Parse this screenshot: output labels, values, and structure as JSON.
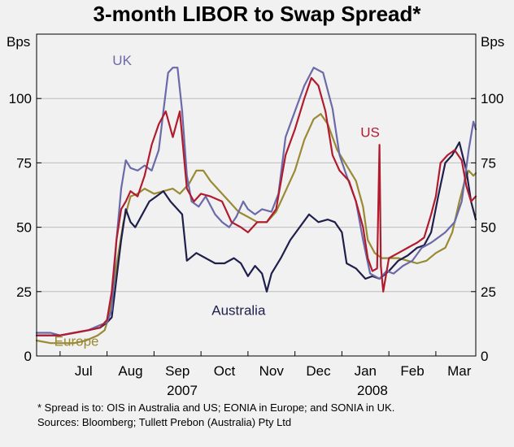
{
  "chart_data": {
    "type": "line",
    "title": "3-month LIBOR to Swap Spread*",
    "ylabel_left": "Bps",
    "ylabel_right": "Bps",
    "ylim": [
      0,
      125
    ],
    "yticks": [
      0,
      25,
      50,
      75,
      100
    ],
    "months": [
      "Jul",
      "Aug",
      "Sep",
      "Oct",
      "Nov",
      "Dec",
      "Jan",
      "Feb",
      "Mar"
    ],
    "years": [
      {
        "label": "2007",
        "at": 3.6
      },
      {
        "label": "2008",
        "at": 7.65
      }
    ],
    "x_unit": "months since 1 Jun 2007",
    "xlim": [
      0.5,
      9.85
    ],
    "series": [
      {
        "name": "UK",
        "color": "#6b6aa8",
        "points": [
          [
            0.5,
            9
          ],
          [
            0.8,
            9
          ],
          [
            1.0,
            8
          ],
          [
            1.3,
            9
          ],
          [
            1.6,
            10
          ],
          [
            1.85,
            12
          ],
          [
            2.0,
            13
          ],
          [
            2.1,
            18
          ],
          [
            2.2,
            45
          ],
          [
            2.3,
            65
          ],
          [
            2.4,
            76
          ],
          [
            2.5,
            73
          ],
          [
            2.65,
            72
          ],
          [
            2.8,
            74
          ],
          [
            2.95,
            72
          ],
          [
            3.1,
            80
          ],
          [
            3.2,
            95
          ],
          [
            3.3,
            110
          ],
          [
            3.4,
            112
          ],
          [
            3.5,
            112
          ],
          [
            3.6,
            95
          ],
          [
            3.7,
            70
          ],
          [
            3.8,
            60
          ],
          [
            3.95,
            58
          ],
          [
            4.1,
            62
          ],
          [
            4.3,
            55
          ],
          [
            4.45,
            52
          ],
          [
            4.6,
            50
          ],
          [
            4.75,
            54
          ],
          [
            4.9,
            60
          ],
          [
            5.0,
            57
          ],
          [
            5.15,
            55
          ],
          [
            5.3,
            57
          ],
          [
            5.5,
            56
          ],
          [
            5.65,
            63
          ],
          [
            5.8,
            85
          ],
          [
            6.0,
            95
          ],
          [
            6.2,
            105
          ],
          [
            6.4,
            112
          ],
          [
            6.6,
            110
          ],
          [
            6.8,
            96
          ],
          [
            6.95,
            78
          ],
          [
            7.1,
            70
          ],
          [
            7.3,
            60
          ],
          [
            7.45,
            45
          ],
          [
            7.6,
            32
          ],
          [
            7.8,
            30
          ],
          [
            7.95,
            33
          ],
          [
            8.1,
            32
          ],
          [
            8.3,
            35
          ],
          [
            8.5,
            37
          ],
          [
            8.7,
            42
          ],
          [
            8.9,
            44
          ],
          [
            9.05,
            46
          ],
          [
            9.2,
            48
          ],
          [
            9.4,
            52
          ],
          [
            9.55,
            60
          ],
          [
            9.7,
            80
          ],
          [
            9.8,
            91
          ],
          [
            9.85,
            88
          ]
        ]
      },
      {
        "name": "US",
        "color": "#b01c2e",
        "points": [
          [
            0.5,
            8
          ],
          [
            0.8,
            8
          ],
          [
            1.0,
            8
          ],
          [
            1.3,
            9
          ],
          [
            1.6,
            10
          ],
          [
            1.85,
            11
          ],
          [
            2.0,
            14
          ],
          [
            2.1,
            25
          ],
          [
            2.2,
            45
          ],
          [
            2.3,
            57
          ],
          [
            2.4,
            60
          ],
          [
            2.5,
            64
          ],
          [
            2.65,
            62
          ],
          [
            2.8,
            70
          ],
          [
            2.95,
            82
          ],
          [
            3.1,
            90
          ],
          [
            3.25,
            95
          ],
          [
            3.4,
            85
          ],
          [
            3.55,
            95
          ],
          [
            3.7,
            65
          ],
          [
            3.85,
            60
          ],
          [
            4.0,
            63
          ],
          [
            4.2,
            62
          ],
          [
            4.45,
            60
          ],
          [
            4.65,
            52
          ],
          [
            4.85,
            50
          ],
          [
            5.0,
            48
          ],
          [
            5.2,
            52
          ],
          [
            5.4,
            52
          ],
          [
            5.6,
            57
          ],
          [
            5.8,
            78
          ],
          [
            6.0,
            88
          ],
          [
            6.2,
            100
          ],
          [
            6.35,
            108
          ],
          [
            6.5,
            105
          ],
          [
            6.65,
            95
          ],
          [
            6.8,
            78
          ],
          [
            6.95,
            72
          ],
          [
            7.15,
            68
          ],
          [
            7.3,
            60
          ],
          [
            7.45,
            50
          ],
          [
            7.55,
            38
          ],
          [
            7.65,
            33
          ],
          [
            7.75,
            34
          ],
          [
            7.8,
            82
          ],
          [
            7.83,
            35
          ],
          [
            7.88,
            25
          ],
          [
            8.0,
            38
          ],
          [
            8.2,
            40
          ],
          [
            8.4,
            42
          ],
          [
            8.6,
            44
          ],
          [
            8.75,
            46
          ],
          [
            8.9,
            55
          ],
          [
            9.0,
            62
          ],
          [
            9.1,
            75
          ],
          [
            9.25,
            78
          ],
          [
            9.4,
            80
          ],
          [
            9.55,
            76
          ],
          [
            9.65,
            66
          ],
          [
            9.75,
            60
          ],
          [
            9.85,
            62
          ]
        ]
      },
      {
        "name": "Europe",
        "color": "#9a8a34",
        "points": [
          [
            0.5,
            6
          ],
          [
            0.8,
            5
          ],
          [
            1.0,
            5
          ],
          [
            1.3,
            5
          ],
          [
            1.55,
            6
          ],
          [
            1.8,
            8
          ],
          [
            1.95,
            10
          ],
          [
            2.05,
            16
          ],
          [
            2.2,
            35
          ],
          [
            2.35,
            52
          ],
          [
            2.5,
            62
          ],
          [
            2.65,
            63
          ],
          [
            2.8,
            65
          ],
          [
            3.0,
            63
          ],
          [
            3.2,
            64
          ],
          [
            3.4,
            65
          ],
          [
            3.55,
            63
          ],
          [
            3.75,
            67
          ],
          [
            3.9,
            72
          ],
          [
            4.05,
            72
          ],
          [
            4.2,
            68
          ],
          [
            4.4,
            64
          ],
          [
            4.6,
            60
          ],
          [
            4.8,
            56
          ],
          [
            5.0,
            54
          ],
          [
            5.2,
            52
          ],
          [
            5.4,
            52
          ],
          [
            5.6,
            56
          ],
          [
            5.8,
            64
          ],
          [
            6.0,
            72
          ],
          [
            6.2,
            84
          ],
          [
            6.4,
            92
          ],
          [
            6.55,
            94
          ],
          [
            6.7,
            90
          ],
          [
            6.9,
            80
          ],
          [
            7.1,
            74
          ],
          [
            7.3,
            68
          ],
          [
            7.45,
            58
          ],
          [
            7.55,
            45
          ],
          [
            7.7,
            40
          ],
          [
            7.85,
            38
          ],
          [
            8.0,
            38
          ],
          [
            8.2,
            38
          ],
          [
            8.4,
            37
          ],
          [
            8.6,
            36
          ],
          [
            8.8,
            37
          ],
          [
            9.0,
            40
          ],
          [
            9.2,
            42
          ],
          [
            9.35,
            48
          ],
          [
            9.5,
            60
          ],
          [
            9.6,
            67
          ],
          [
            9.7,
            72
          ],
          [
            9.8,
            70
          ],
          [
            9.85,
            71
          ]
        ]
      },
      {
        "name": "Australia",
        "color": "#1e1f4a",
        "points": [
          [
            0.5,
            8
          ],
          [
            0.8,
            8
          ],
          [
            1.0,
            8
          ],
          [
            1.3,
            9
          ],
          [
            1.6,
            10
          ],
          [
            1.85,
            11
          ],
          [
            2.0,
            13
          ],
          [
            2.1,
            15
          ],
          [
            2.2,
            30
          ],
          [
            2.3,
            45
          ],
          [
            2.4,
            57
          ],
          [
            2.5,
            52
          ],
          [
            2.6,
            50
          ],
          [
            2.75,
            55
          ],
          [
            2.9,
            60
          ],
          [
            3.05,
            62
          ],
          [
            3.2,
            64
          ],
          [
            3.35,
            60
          ],
          [
            3.45,
            58
          ],
          [
            3.6,
            55
          ],
          [
            3.7,
            37
          ],
          [
            3.9,
            40
          ],
          [
            4.1,
            38
          ],
          [
            4.3,
            36
          ],
          [
            4.5,
            36
          ],
          [
            4.7,
            38
          ],
          [
            4.85,
            36
          ],
          [
            5.0,
            31
          ],
          [
            5.15,
            35
          ],
          [
            5.3,
            32
          ],
          [
            5.4,
            25
          ],
          [
            5.5,
            32
          ],
          [
            5.7,
            38
          ],
          [
            5.9,
            45
          ],
          [
            6.1,
            50
          ],
          [
            6.3,
            55
          ],
          [
            6.5,
            52
          ],
          [
            6.7,
            53
          ],
          [
            6.85,
            52
          ],
          [
            7.0,
            48
          ],
          [
            7.1,
            36
          ],
          [
            7.3,
            34
          ],
          [
            7.5,
            30
          ],
          [
            7.65,
            31
          ],
          [
            7.8,
            30
          ],
          [
            8.0,
            33
          ],
          [
            8.2,
            37
          ],
          [
            8.4,
            39
          ],
          [
            8.6,
            42
          ],
          [
            8.75,
            43
          ],
          [
            8.9,
            48
          ],
          [
            9.05,
            62
          ],
          [
            9.2,
            75
          ],
          [
            9.35,
            78
          ],
          [
            9.5,
            83
          ],
          [
            9.65,
            72
          ],
          [
            9.75,
            60
          ],
          [
            9.85,
            53
          ]
        ]
      }
    ],
    "series_labels": [
      {
        "name": "UK",
        "x": 2.32,
        "y": 113
      },
      {
        "name": "US",
        "x": 7.6,
        "y": 85
      },
      {
        "name": "Australia",
        "x": 4.8,
        "y": 16
      },
      {
        "name": "Europe",
        "x": 1.35,
        "y": 4
      }
    ]
  },
  "footnotes": {
    "line1": "*   Spread is to: OIS in Australia and US; EONIA in Europe; and SONIA in UK.",
    "line2": "Sources: Bloomberg; Tullett Prebon (Australia) Pty Ltd"
  }
}
